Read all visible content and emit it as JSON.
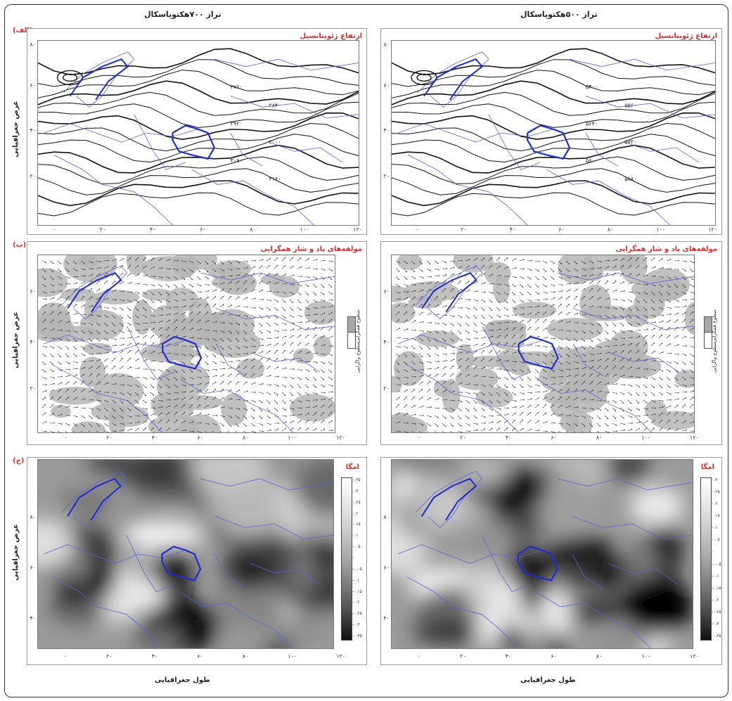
{
  "columns": {
    "left_title": "تراز ۷۰۰هکتوپاسکال",
    "right_title": "تراز ۵۰۰هکتوپاسکال"
  },
  "rows": [
    {
      "label": "(الف)",
      "panel_title": "ارتفاع ژئوپتانسیل"
    },
    {
      "label": "(ب)",
      "panel_title": "مولفه‌های باد و شار همگرایی"
    },
    {
      "label": "(ج)",
      "panel_title": "امگا"
    }
  ],
  "axes": {
    "ylabel": "عرض جغرافیایی",
    "xlabel": "طول جغرافیایی",
    "xticks": [
      "۰",
      "۲۰",
      "۴۰",
      "۶۰",
      "۸۰",
      "۱۰۰",
      "۱۲۰"
    ],
    "yticks": [
      "۸۰",
      "۶۰",
      "۴۰",
      "۲۰"
    ]
  },
  "legend_b": {
    "top": "سطوح همگرایی",
    "bottom": "سطوح واگرایی"
  },
  "colorbar_left": [
    "۰.۳۵",
    "۰.۳",
    "۰.۲۵",
    "۰.۲",
    "۰.۱۵",
    "۰.۱",
    "۰.۰۵",
    "۰",
    "-۰.۰۵",
    "-۰.۱",
    "-۰.۱۵",
    "-۰.۲",
    "-۰.۲۵",
    "-۰.۳",
    "-۰.۳۵"
  ],
  "colorbar_right": [
    "۰.۳",
    "۰.۲۵",
    "۰.۲",
    "۰.۱۵",
    "۰.۱",
    "۰.۰۵",
    "۰",
    "-۰.۰۵",
    "-۰.۱",
    "-۰.۱۵",
    "-۰.۲",
    "-۰.۲۵",
    "-۰.۳",
    "-۰.۳۵"
  ],
  "contour_labels": {
    "left": [
      "۲۷۶۰",
      "۲۸۴۰",
      "۲۹۲۰",
      "۳۰۰۰",
      "۳۰۸۰",
      "۳۱۶۰"
    ],
    "right": [
      "۵۴۰۰",
      "۵۵۶۰",
      "۵۶۴۰",
      "۵۷۲۰",
      "۵۸۰۰",
      "۵۸۸۰"
    ]
  },
  "colors": {
    "accent": "#d32f2f",
    "border": "#1f2ccf"
  }
}
